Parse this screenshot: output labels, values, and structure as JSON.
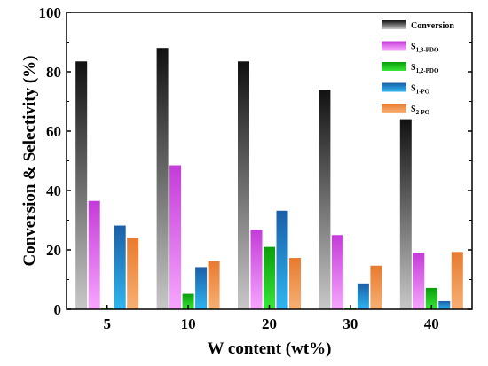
{
  "chart_data": {
    "type": "bar",
    "xlabel": "W content (wt%)",
    "ylabel": "Conversion & Selectivity (%)",
    "categories": [
      "5",
      "10",
      "20",
      "30",
      "40"
    ],
    "ylim": [
      0,
      100
    ],
    "yticks": [
      "0",
      "20",
      "40",
      "60",
      "80",
      "100"
    ],
    "legend_position": "top-right",
    "series": [
      {
        "name": "Conversion",
        "main": "Conversion",
        "sub": "",
        "color_top": "#111111",
        "color_bottom": "#c8c8c8",
        "values": [
          83.5,
          88,
          83.5,
          74,
          64
        ]
      },
      {
        "name": "S1,3-PDO",
        "main": "S",
        "sub": "1,3-PDO",
        "color_top": "#c43bd8",
        "color_bottom": "#f7a6ff",
        "values": [
          36.5,
          48.5,
          26.8,
          25,
          19
        ]
      },
      {
        "name": "S1,2-PDO",
        "main": "S",
        "sub": "1,2-PDO",
        "color_top": "#0a9e0a",
        "color_bottom": "#39e639",
        "values": [
          0.5,
          5.2,
          21,
          0.5,
          7.2
        ]
      },
      {
        "name": "S1-PO",
        "main": "S",
        "sub": "1-PO",
        "color_top": "#1a5fa8",
        "color_bottom": "#2fb6f0",
        "values": [
          28.2,
          14.2,
          33.2,
          8.7,
          2.7
        ]
      },
      {
        "name": "S2-PO",
        "main": "S",
        "sub": "2-PO",
        "color_top": "#e87a2e",
        "color_bottom": "#f7b074",
        "values": [
          24.2,
          16.2,
          17.3,
          14.7,
          19.3
        ]
      }
    ]
  }
}
